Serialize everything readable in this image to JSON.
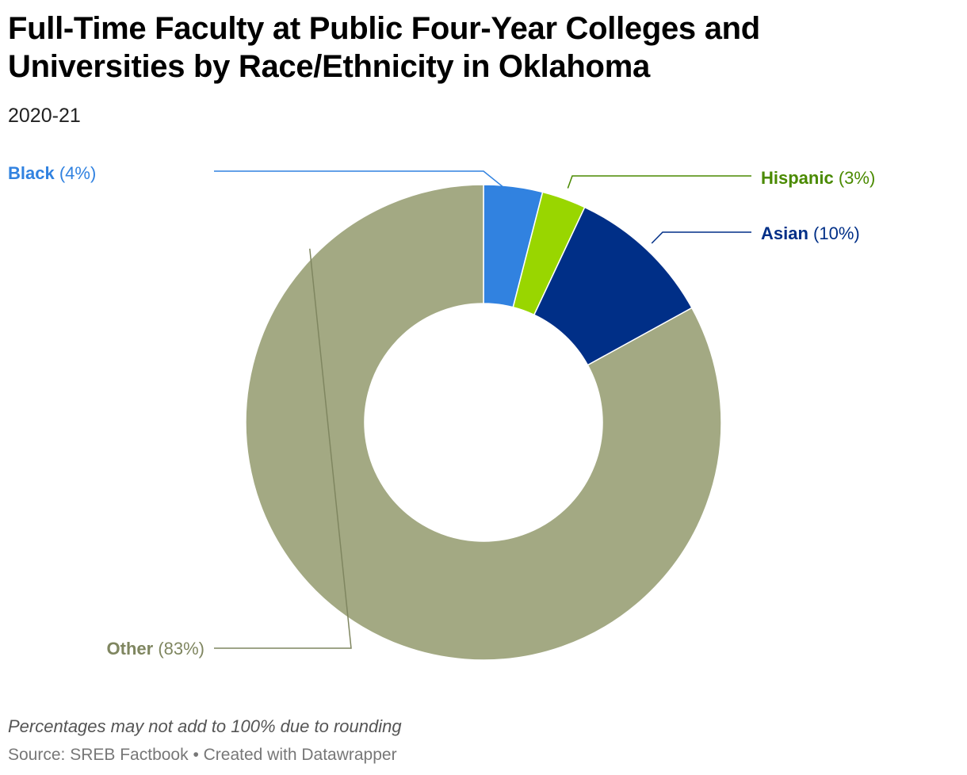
{
  "title": "Full-Time Faculty at Public Four-Year Colleges and Universities by Race/Ethnicity in Oklahoma",
  "subtitle": "2020-21",
  "note": "Percentages may not add to 100% due to rounding",
  "source": "Source: SREB Factbook • Created with Datawrapper",
  "chart_data": {
    "type": "pie",
    "subtype": "donut",
    "title": "Full-Time Faculty at Public Four-Year Colleges and Universities by Race/Ethnicity in Oklahoma",
    "subtitle": "2020-21",
    "categories": [
      "Black",
      "Hispanic",
      "Asian",
      "Other"
    ],
    "values": [
      4,
      3,
      10,
      83
    ],
    "value_labels": [
      "(4%)",
      "(3%)",
      "(10%)",
      "(83%)"
    ],
    "colors": [
      "#3182e0",
      "#99d600",
      "#002f87",
      "#a3a983"
    ],
    "label_colors": [
      "#3182e0",
      "#4a8a00",
      "#002f87",
      "#7f8660"
    ]
  }
}
